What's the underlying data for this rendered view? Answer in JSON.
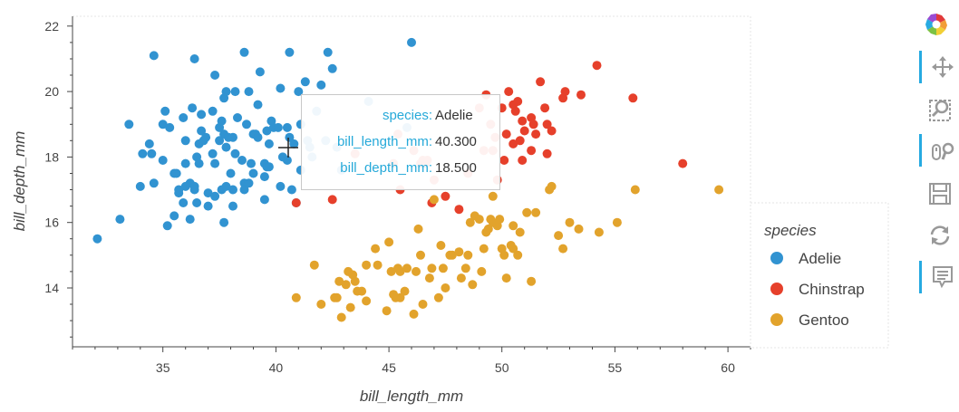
{
  "chart_data": {
    "type": "scatter",
    "xlabel": "bill_length_mm",
    "ylabel": "bill_depth_mm",
    "xlim": [
      31,
      61
    ],
    "ylim": [
      12.2,
      22.3
    ],
    "xticks": [
      "35",
      "40",
      "45",
      "50",
      "55",
      "60"
    ],
    "yticks": [
      "14",
      "16",
      "18",
      "20",
      "22"
    ],
    "grid": false,
    "legend": {
      "title": "species",
      "position": "right"
    },
    "series": [
      {
        "name": "Adelie",
        "color": "#3193d1",
        "points": [
          [
            32.1,
            15.5
          ],
          [
            33.1,
            16.1
          ],
          [
            33.5,
            19.0
          ],
          [
            34.0,
            17.1
          ],
          [
            34.1,
            18.1
          ],
          [
            34.4,
            18.4
          ],
          [
            34.5,
            18.1
          ],
          [
            34.6,
            21.1
          ],
          [
            34.6,
            17.2
          ],
          [
            35.0,
            17.9
          ],
          [
            35.0,
            19.0
          ],
          [
            35.1,
            19.4
          ],
          [
            35.2,
            15.9
          ],
          [
            35.3,
            18.9
          ],
          [
            35.5,
            17.5
          ],
          [
            35.5,
            16.2
          ],
          [
            35.6,
            17.5
          ],
          [
            35.7,
            16.9
          ],
          [
            35.7,
            17.0
          ],
          [
            35.9,
            16.6
          ],
          [
            35.9,
            19.2
          ],
          [
            36.0,
            17.1
          ],
          [
            36.0,
            18.5
          ],
          [
            36.0,
            17.8
          ],
          [
            36.2,
            16.1
          ],
          [
            36.2,
            17.2
          ],
          [
            36.3,
            19.5
          ],
          [
            36.4,
            17.1
          ],
          [
            36.4,
            17.0
          ],
          [
            36.5,
            18.0
          ],
          [
            36.5,
            16.6
          ],
          [
            36.6,
            17.8
          ],
          [
            36.6,
            18.4
          ],
          [
            36.7,
            19.3
          ],
          [
            36.7,
            18.8
          ],
          [
            36.8,
            18.5
          ],
          [
            36.9,
            18.6
          ],
          [
            37.0,
            16.9
          ],
          [
            37.0,
            16.5
          ],
          [
            37.2,
            18.1
          ],
          [
            37.2,
            19.4
          ],
          [
            37.3,
            17.8
          ],
          [
            37.3,
            20.5
          ],
          [
            37.3,
            16.8
          ],
          [
            37.5,
            18.9
          ],
          [
            37.5,
            18.5
          ],
          [
            37.6,
            19.1
          ],
          [
            37.6,
            17.0
          ],
          [
            37.7,
            18.7
          ],
          [
            37.7,
            16.0
          ],
          [
            37.7,
            19.8
          ],
          [
            37.8,
            18.3
          ],
          [
            37.8,
            17.1
          ],
          [
            37.8,
            20.0
          ],
          [
            37.9,
            18.6
          ],
          [
            38.0,
            17.5
          ],
          [
            38.1,
            18.6
          ],
          [
            38.1,
            17.0
          ],
          [
            38.1,
            16.5
          ],
          [
            38.2,
            18.1
          ],
          [
            38.2,
            20.0
          ],
          [
            38.3,
            19.2
          ],
          [
            38.5,
            17.9
          ],
          [
            38.6,
            21.2
          ],
          [
            38.6,
            17.2
          ],
          [
            38.6,
            17.0
          ],
          [
            38.7,
            19.0
          ],
          [
            38.8,
            17.2
          ],
          [
            38.8,
            20.0
          ],
          [
            38.9,
            17.8
          ],
          [
            39.0,
            17.5
          ],
          [
            39.0,
            18.7
          ],
          [
            39.1,
            18.7
          ],
          [
            39.2,
            19.6
          ],
          [
            39.2,
            18.6
          ],
          [
            39.3,
            20.6
          ],
          [
            39.5,
            17.4
          ],
          [
            39.5,
            16.7
          ],
          [
            39.5,
            17.8
          ],
          [
            39.6,
            18.8
          ],
          [
            39.6,
            17.7
          ],
          [
            39.7,
            18.4
          ],
          [
            39.7,
            17.7
          ],
          [
            39.8,
            19.1
          ],
          [
            39.9,
            18.9
          ],
          [
            40.1,
            18.9
          ],
          [
            40.2,
            17.1
          ],
          [
            40.2,
            20.1
          ],
          [
            40.3,
            18.0
          ],
          [
            40.5,
            17.9
          ],
          [
            40.5,
            18.9
          ],
          [
            40.6,
            18.6
          ],
          [
            40.7,
            17.0
          ],
          [
            40.8,
            18.4
          ],
          [
            40.9,
            16.6
          ],
          [
            41.0,
            20.0
          ],
          [
            41.1,
            17.6
          ],
          [
            41.1,
            19.0
          ],
          [
            41.3,
            20.3
          ],
          [
            41.4,
            18.5
          ],
          [
            41.5,
            18.3
          ],
          [
            41.6,
            18.0
          ],
          [
            41.8,
            19.4
          ],
          [
            42.0,
            20.2
          ],
          [
            42.2,
            18.5
          ],
          [
            42.3,
            21.2
          ],
          [
            42.5,
            20.7
          ],
          [
            42.7,
            18.3
          ],
          [
            42.9,
            17.6
          ],
          [
            44.1,
            19.7
          ],
          [
            45.8,
            18.9
          ],
          [
            46.0,
            21.5
          ],
          [
            40.6,
            21.2
          ],
          [
            36.4,
            21.0
          ]
        ]
      },
      {
        "name": "Chinstrap",
        "color": "#e6402b",
        "points": [
          [
            40.9,
            16.6
          ],
          [
            42.5,
            16.7
          ],
          [
            43.5,
            18.1
          ],
          [
            45.2,
            17.8
          ],
          [
            45.4,
            18.7
          ],
          [
            45.5,
            17.0
          ],
          [
            46.1,
            18.2
          ],
          [
            46.4,
            17.8
          ],
          [
            46.5,
            17.9
          ],
          [
            46.6,
            17.8
          ],
          [
            46.7,
            17.9
          ],
          [
            46.9,
            16.6
          ],
          [
            47.0,
            17.3
          ],
          [
            47.5,
            16.8
          ],
          [
            48.1,
            16.4
          ],
          [
            49.0,
            19.5
          ],
          [
            49.2,
            18.2
          ],
          [
            49.3,
            19.9
          ],
          [
            49.5,
            19.0
          ],
          [
            49.6,
            18.2
          ],
          [
            49.8,
            17.3
          ],
          [
            50.0,
            19.5
          ],
          [
            50.1,
            17.9
          ],
          [
            50.2,
            18.7
          ],
          [
            50.3,
            20.0
          ],
          [
            50.5,
            19.6
          ],
          [
            50.5,
            18.4
          ],
          [
            50.6,
            19.4
          ],
          [
            50.7,
            19.7
          ],
          [
            50.8,
            18.5
          ],
          [
            50.9,
            17.9
          ],
          [
            50.9,
            19.1
          ],
          [
            51.0,
            18.8
          ],
          [
            51.3,
            18.2
          ],
          [
            51.3,
            19.2
          ],
          [
            51.4,
            19.0
          ],
          [
            51.5,
            18.7
          ],
          [
            51.7,
            20.3
          ],
          [
            51.9,
            19.5
          ],
          [
            52.0,
            18.1
          ],
          [
            52.0,
            19.0
          ],
          [
            52.2,
            18.8
          ],
          [
            52.7,
            19.8
          ],
          [
            52.8,
            20.0
          ],
          [
            53.5,
            19.9
          ],
          [
            54.2,
            20.8
          ],
          [
            55.8,
            19.8
          ],
          [
            58.0,
            17.8
          ],
          [
            49.7,
            18.6
          ],
          [
            48.5,
            17.5
          ]
        ]
      },
      {
        "name": "Gentoo",
        "color": "#e2a32c",
        "points": [
          [
            40.9,
            13.7
          ],
          [
            41.7,
            14.7
          ],
          [
            42.0,
            13.5
          ],
          [
            42.6,
            13.7
          ],
          [
            42.7,
            13.7
          ],
          [
            42.8,
            14.2
          ],
          [
            42.9,
            13.1
          ],
          [
            43.2,
            14.5
          ],
          [
            43.3,
            13.4
          ],
          [
            43.4,
            14.4
          ],
          [
            43.5,
            14.2
          ],
          [
            43.6,
            13.9
          ],
          [
            43.8,
            13.9
          ],
          [
            44.0,
            13.6
          ],
          [
            44.4,
            15.2
          ],
          [
            44.5,
            14.7
          ],
          [
            44.9,
            13.3
          ],
          [
            45.1,
            14.5
          ],
          [
            45.2,
            13.8
          ],
          [
            45.3,
            13.7
          ],
          [
            45.4,
            14.6
          ],
          [
            45.5,
            13.7
          ],
          [
            45.5,
            14.5
          ],
          [
            45.7,
            13.9
          ],
          [
            45.8,
            14.6
          ],
          [
            46.1,
            13.2
          ],
          [
            46.2,
            14.5
          ],
          [
            46.4,
            15.0
          ],
          [
            46.5,
            13.5
          ],
          [
            46.8,
            14.3
          ],
          [
            46.9,
            14.6
          ],
          [
            47.2,
            13.7
          ],
          [
            47.3,
            15.3
          ],
          [
            47.5,
            14.0
          ],
          [
            47.7,
            15.0
          ],
          [
            47.8,
            15.0
          ],
          [
            48.1,
            15.1
          ],
          [
            48.2,
            14.3
          ],
          [
            48.4,
            14.6
          ],
          [
            48.5,
            15.0
          ],
          [
            48.7,
            14.1
          ],
          [
            48.8,
            16.2
          ],
          [
            49.0,
            16.1
          ],
          [
            49.1,
            14.5
          ],
          [
            49.2,
            15.2
          ],
          [
            49.3,
            15.7
          ],
          [
            49.4,
            15.8
          ],
          [
            49.5,
            16.1
          ],
          [
            49.6,
            16.0
          ],
          [
            49.8,
            15.9
          ],
          [
            49.9,
            16.1
          ],
          [
            50.0,
            15.2
          ],
          [
            50.1,
            15.0
          ],
          [
            50.2,
            14.3
          ],
          [
            50.4,
            15.3
          ],
          [
            50.5,
            15.9
          ],
          [
            50.7,
            15.0
          ],
          [
            50.8,
            15.7
          ],
          [
            51.1,
            16.3
          ],
          [
            51.3,
            14.2
          ],
          [
            51.5,
            16.3
          ],
          [
            52.1,
            17.0
          ],
          [
            52.2,
            17.1
          ],
          [
            52.5,
            15.6
          ],
          [
            53.4,
            15.8
          ],
          [
            54.3,
            15.7
          ],
          [
            55.1,
            16.0
          ],
          [
            55.9,
            17.0
          ],
          [
            59.6,
            17.0
          ],
          [
            45.0,
            15.4
          ],
          [
            46.3,
            15.8
          ],
          [
            47.4,
            14.6
          ],
          [
            48.6,
            16.0
          ],
          [
            50.5,
            15.2
          ],
          [
            43.1,
            14.1
          ],
          [
            44.0,
            14.7
          ],
          [
            47.0,
            16.7
          ],
          [
            49.6,
            16.8
          ],
          [
            52.7,
            15.2
          ],
          [
            53.0,
            16.0
          ]
        ]
      }
    ]
  },
  "tooltip": {
    "rows": [
      {
        "key": "species:",
        "value": "Adelie"
      },
      {
        "key": "bill_length_mm:",
        "value": "40.300"
      },
      {
        "key": "bill_depth_mm:",
        "value": "18.500"
      }
    ]
  },
  "toolbar": {
    "tools": [
      "pan-tool",
      "box-zoom-tool",
      "wheel-zoom-tool",
      "save-tool",
      "reset-tool",
      "hover-tool"
    ],
    "active": [
      "pan-tool",
      "wheel-zoom-tool",
      "hover-tool"
    ]
  },
  "colors": {
    "axis": "#444444",
    "frame_border": "#e5e5e5",
    "tooltip_key": "#26a9d9",
    "toolbar_active": "#26aae1"
  }
}
